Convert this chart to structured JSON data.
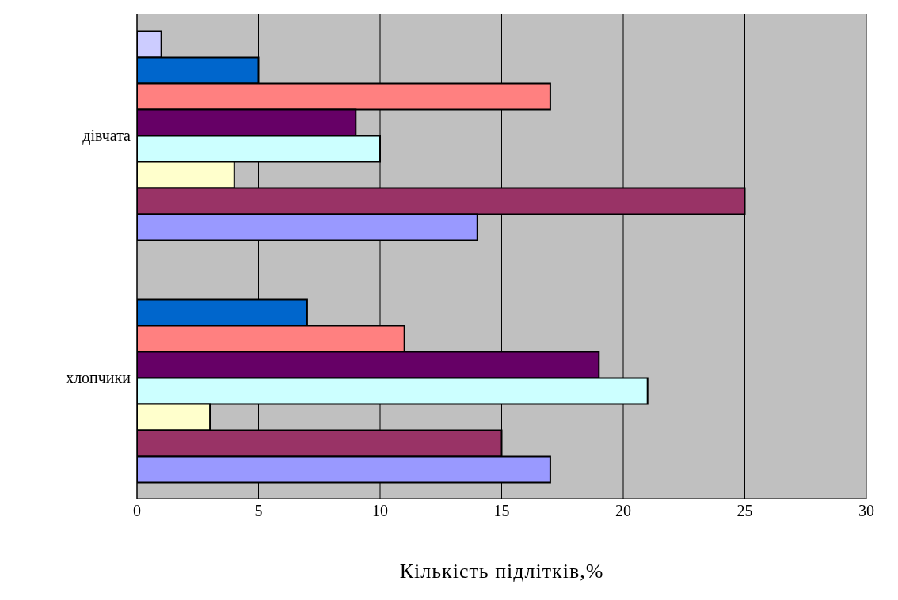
{
  "chart_data": {
    "type": "bar",
    "orientation": "horizontal",
    "xlabel": "Кількість підлітків,%",
    "categories": [
      "дівчата",
      "хлопчики"
    ],
    "series": [
      {
        "color": "#ccccff",
        "values": [
          1,
          null
        ]
      },
      {
        "color": "#0066cc",
        "values": [
          5,
          7
        ]
      },
      {
        "color": "#ff8080",
        "values": [
          17,
          11
        ]
      },
      {
        "color": "#660066",
        "values": [
          9,
          19
        ]
      },
      {
        "color": "#ccffff",
        "values": [
          10,
          21
        ]
      },
      {
        "color": "#ffffcc",
        "values": [
          4,
          3
        ]
      },
      {
        "color": "#993366",
        "values": [
          25,
          15
        ]
      },
      {
        "color": "#9999ff",
        "values": [
          14,
          17
        ]
      }
    ],
    "xlim": [
      0,
      30
    ],
    "xticks": [
      0,
      5,
      10,
      15,
      20,
      25,
      30
    ],
    "grid": "x",
    "legend": false
  }
}
